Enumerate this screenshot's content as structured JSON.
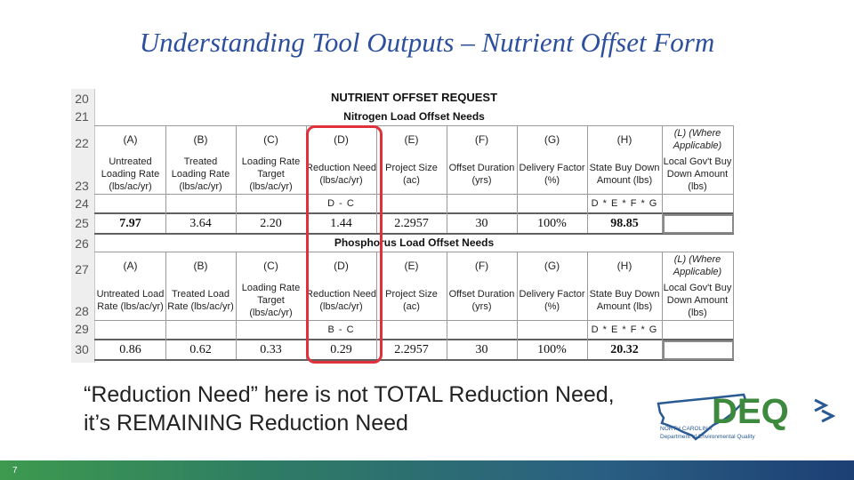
{
  "slide": {
    "title": "Understanding Tool Outputs – Nutrient Offset Form",
    "note": "“Reduction Need” here is not TOTAL Reduction Need, it’s REMAINING Reduction Need",
    "page_number": "7"
  },
  "table": {
    "row_numbers": [
      "20",
      "21",
      "22",
      "23",
      "24",
      "25",
      "26",
      "27",
      "28",
      "29",
      "30"
    ],
    "title": "NUTRIENT OFFSET REQUEST",
    "nitrogen": {
      "section_title": "Nitrogen Load Offset Needs",
      "letters": [
        "(A)",
        "(B)",
        "(C)",
        "(D)",
        "(E)",
        "(F)",
        "(G)",
        "(H)",
        "(L) (Where Applicable)"
      ],
      "headers": [
        "Untreated Loading Rate (lbs/ac/yr)",
        "Treated Loading Rate (lbs/ac/yr)",
        "Loading Rate Target (lbs/ac/yr)",
        "Reduction Need (lbs/ac/yr)",
        "Project Size (ac)",
        "Offset Duration (yrs)",
        "Delivery Factor (%)",
        "State Buy Down Amount (lbs)",
        "Local Gov't Buy Down Amount (lbs)"
      ],
      "formula_d": "D - C",
      "formula_h": "D * E * F * G",
      "values": [
        "7.97",
        "3.64",
        "2.20",
        "1.44",
        "2.2957",
        "30",
        "100%",
        "98.85",
        ""
      ]
    },
    "phosphorus": {
      "section_title": "Phosphorus Load Offset Needs",
      "letters": [
        "(A)",
        "(B)",
        "(C)",
        "(D)",
        "(E)",
        "(F)",
        "(G)",
        "(H)",
        "(L) (Where Applicable)"
      ],
      "headers": [
        "Untreated Load Rate (lbs/ac/yr)",
        "Treated Load Rate (lbs/ac/yr)",
        "Loading Rate Target (lbs/ac/yr)",
        "Reduction Need (lbs/ac/yr)",
        "Project Size (ac)",
        "Offset Duration (yrs)",
        "Delivery Factor (%)",
        "State Buy Down Amount (lbs)",
        "Local Gov't Buy Down Amount (lbs)"
      ],
      "formula_d": "B - C",
      "formula_h": "D * E * F * G",
      "values": [
        "0.86",
        "0.62",
        "0.33",
        "0.29",
        "2.2957",
        "30",
        "100%",
        "20.32",
        ""
      ]
    }
  },
  "logo": {
    "text": "DEQ",
    "state_name": "NORTH CAROLINA",
    "department": "Department of Environmental Quality",
    "colors": {
      "green": "#3d8a3e",
      "blue": "#2a5a94"
    }
  }
}
